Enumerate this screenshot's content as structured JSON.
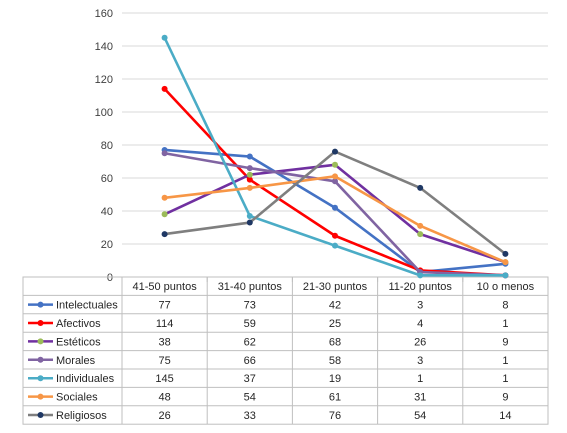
{
  "chart_data": {
    "type": "line",
    "categories": [
      "41-50 puntos",
      "31-40 puntos",
      "21-30 puntos",
      "11-20 puntos",
      "10 o menos"
    ],
    "ylim": [
      0,
      160
    ],
    "yticks": [
      0,
      20,
      40,
      60,
      80,
      100,
      120,
      140,
      160
    ],
    "grid": true,
    "legend": "data-table",
    "series": [
      {
        "name": "Intelectuales",
        "color": "#4472C4",
        "values": [
          77,
          73,
          42,
          3,
          8
        ]
      },
      {
        "name": "Afectivos",
        "color": "#FF0000",
        "values": [
          114,
          59,
          25,
          4,
          1
        ]
      },
      {
        "name": "Estéticos",
        "color": "#9BBB59",
        "line_color": "#7030A0",
        "values": [
          38,
          62,
          68,
          26,
          9
        ]
      },
      {
        "name": "Morales",
        "color": "#8064A2",
        "values": [
          75,
          66,
          58,
          3,
          1
        ]
      },
      {
        "name": "Individuales",
        "color": "#4BACC6",
        "values": [
          145,
          37,
          19,
          1,
          1
        ]
      },
      {
        "name": "Sociales",
        "color": "#F79646",
        "values": [
          48,
          54,
          61,
          31,
          9
        ]
      },
      {
        "name": "Religiosos",
        "color": "#1F3864",
        "line_color": "#7F7F7F",
        "values": [
          26,
          33,
          76,
          54,
          14
        ]
      }
    ]
  }
}
